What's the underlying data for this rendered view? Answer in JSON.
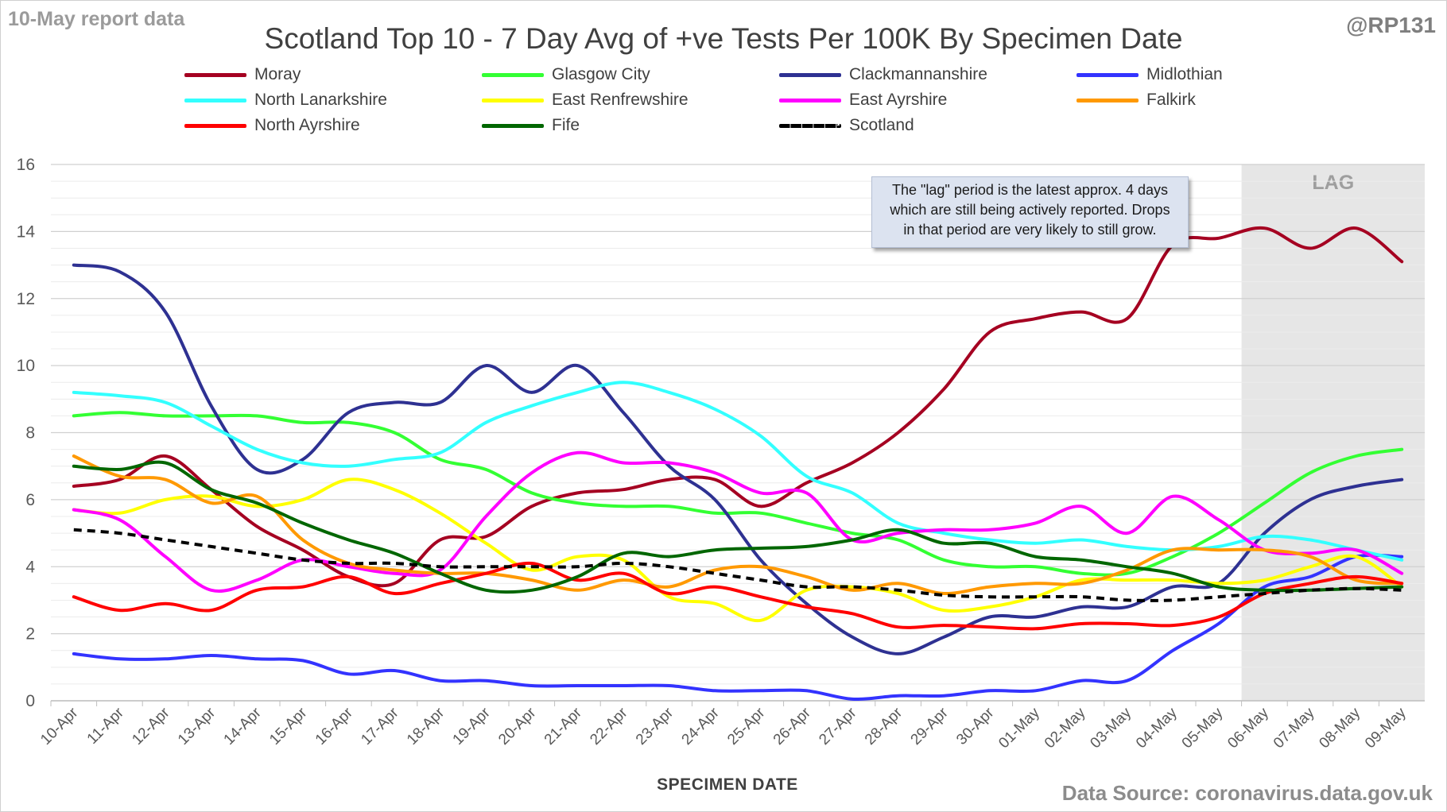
{
  "report_date": "10-May report data",
  "title": "Scotland Top 10 - 7 Day Avg of +ve Tests Per 100K By Specimen Date",
  "handle": "@RP131",
  "source": "Data Source: coronavirus.data.gov.uk",
  "lag_label": "LAG",
  "callout": {
    "line1": "The \"lag\" period is the latest approx. 4 days",
    "line2": "which are still being actively reported.  Drops",
    "line3": "in that period are very likely to still grow."
  },
  "chart_data": {
    "type": "line",
    "title": "Scotland Top 10 - 7 Day Avg of +ve Tests Per 100K By Specimen Date",
    "xlabel": "SPECIMEN DATE",
    "ylabel": "",
    "ylim": [
      0,
      16
    ],
    "yticks": [
      0,
      2,
      4,
      6,
      8,
      10,
      12,
      14,
      16
    ],
    "grid": true,
    "legend_position": "top",
    "lag_period": [
      "06-May",
      "09-May"
    ],
    "categories": [
      "10-Apr",
      "11-Apr",
      "12-Apr",
      "13-Apr",
      "14-Apr",
      "15-Apr",
      "16-Apr",
      "17-Apr",
      "18-Apr",
      "19-Apr",
      "20-Apr",
      "21-Apr",
      "22-Apr",
      "23-Apr",
      "24-Apr",
      "25-Apr",
      "26-Apr",
      "27-Apr",
      "28-Apr",
      "29-Apr",
      "30-Apr",
      "01-May",
      "02-May",
      "03-May",
      "04-May",
      "05-May",
      "06-May",
      "07-May",
      "08-May",
      "09-May"
    ],
    "series": [
      {
        "name": "Moray",
        "color": "#a50021",
        "dashed": false,
        "values": [
          6.4,
          6.6,
          7.3,
          6.3,
          5.2,
          4.5,
          3.7,
          3.5,
          4.8,
          4.9,
          5.8,
          6.2,
          6.3,
          6.6,
          6.6,
          5.8,
          6.5,
          7.1,
          8.0,
          9.3,
          11.0,
          11.4,
          11.6,
          11.4,
          13.6,
          13.8,
          14.1,
          13.5,
          14.1,
          13.1
        ]
      },
      {
        "name": "Glasgow City",
        "color": "#33ff33",
        "dashed": false,
        "values": [
          8.5,
          8.6,
          8.5,
          8.5,
          8.5,
          8.3,
          8.3,
          8.0,
          7.2,
          6.9,
          6.2,
          5.9,
          5.8,
          5.8,
          5.6,
          5.6,
          5.3,
          5.0,
          4.8,
          4.2,
          4.0,
          4.0,
          3.8,
          3.8,
          4.3,
          5.0,
          5.9,
          6.8,
          7.3,
          7.5
        ]
      },
      {
        "name": "Clackmannanshire",
        "color": "#2e3192",
        "dashed": false,
        "values": [
          13.0,
          12.8,
          11.6,
          8.8,
          6.9,
          7.2,
          8.6,
          8.9,
          8.9,
          10.0,
          9.2,
          10.0,
          8.6,
          7.0,
          6.0,
          4.2,
          2.9,
          1.9,
          1.4,
          1.9,
          2.5,
          2.5,
          2.8,
          2.8,
          3.4,
          3.5,
          5.0,
          6.0,
          6.4,
          6.6
        ]
      },
      {
        "name": "Midlothian",
        "color": "#3333ff",
        "dashed": false,
        "values": [
          1.4,
          1.25,
          1.25,
          1.35,
          1.25,
          1.2,
          0.8,
          0.9,
          0.6,
          0.6,
          0.45,
          0.45,
          0.45,
          0.45,
          0.3,
          0.3,
          0.3,
          0.05,
          0.15,
          0.15,
          0.3,
          0.3,
          0.6,
          0.6,
          1.5,
          2.3,
          3.4,
          3.7,
          4.3,
          4.3
        ]
      },
      {
        "name": "North Lanarkshire",
        "color": "#33ffff",
        "dashed": false,
        "values": [
          9.2,
          9.1,
          8.9,
          8.2,
          7.5,
          7.1,
          7.0,
          7.2,
          7.4,
          8.3,
          8.8,
          9.2,
          9.5,
          9.2,
          8.7,
          7.9,
          6.7,
          6.2,
          5.3,
          5.0,
          4.8,
          4.7,
          4.8,
          4.6,
          4.5,
          4.6,
          4.9,
          4.8,
          4.5,
          4.2
        ]
      },
      {
        "name": "East Renfrewshire",
        "color": "#ffff00",
        "dashed": false,
        "values": [
          5.7,
          5.6,
          6.0,
          6.1,
          5.8,
          6.0,
          6.6,
          6.3,
          5.6,
          4.7,
          3.9,
          4.3,
          4.2,
          3.1,
          2.9,
          2.4,
          3.3,
          3.4,
          3.2,
          2.7,
          2.8,
          3.1,
          3.6,
          3.6,
          3.6,
          3.5,
          3.6,
          4.0,
          4.3,
          3.4
        ]
      },
      {
        "name": "East Ayrshire",
        "color": "#ff00ff",
        "dashed": false,
        "values": [
          5.7,
          5.4,
          4.3,
          3.3,
          3.6,
          4.2,
          4.0,
          3.8,
          3.9,
          5.5,
          6.8,
          7.4,
          7.1,
          7.1,
          6.8,
          6.2,
          6.2,
          4.8,
          5.0,
          5.1,
          5.1,
          5.3,
          5.8,
          5.0,
          6.1,
          5.4,
          4.5,
          4.4,
          4.5,
          3.8
        ]
      },
      {
        "name": "Falkirk",
        "color": "#ff9900",
        "dashed": false,
        "values": [
          7.3,
          6.7,
          6.6,
          5.9,
          6.1,
          4.8,
          4.1,
          3.9,
          3.8,
          3.8,
          3.6,
          3.3,
          3.6,
          3.4,
          3.9,
          4.0,
          3.7,
          3.3,
          3.5,
          3.2,
          3.4,
          3.5,
          3.5,
          3.9,
          4.5,
          4.5,
          4.5,
          4.3,
          3.6,
          3.5
        ]
      },
      {
        "name": "North Ayrshire",
        "color": "#ff0000",
        "dashed": false,
        "values": [
          3.1,
          2.7,
          2.9,
          2.7,
          3.3,
          3.4,
          3.7,
          3.2,
          3.5,
          3.8,
          4.1,
          3.6,
          3.8,
          3.2,
          3.4,
          3.1,
          2.8,
          2.6,
          2.2,
          2.25,
          2.2,
          2.15,
          2.3,
          2.3,
          2.25,
          2.5,
          3.2,
          3.5,
          3.7,
          3.5
        ]
      },
      {
        "name": "Fife",
        "color": "#006600",
        "dashed": false,
        "values": [
          7.0,
          6.9,
          7.1,
          6.3,
          5.9,
          5.3,
          4.8,
          4.4,
          3.8,
          3.3,
          3.3,
          3.7,
          4.4,
          4.3,
          4.5,
          4.55,
          4.6,
          4.8,
          5.1,
          4.7,
          4.7,
          4.3,
          4.2,
          4.0,
          3.8,
          3.4,
          3.3,
          3.3,
          3.35,
          3.4
        ]
      },
      {
        "name": "Scotland",
        "color": "#000000",
        "dashed": true,
        "values": [
          5.1,
          5.0,
          4.8,
          4.6,
          4.4,
          4.2,
          4.1,
          4.1,
          4.0,
          4.0,
          4.0,
          4.0,
          4.1,
          4.0,
          3.8,
          3.6,
          3.4,
          3.4,
          3.3,
          3.15,
          3.1,
          3.1,
          3.1,
          3.0,
          3.0,
          3.1,
          3.2,
          3.3,
          3.35,
          3.3
        ]
      }
    ]
  }
}
